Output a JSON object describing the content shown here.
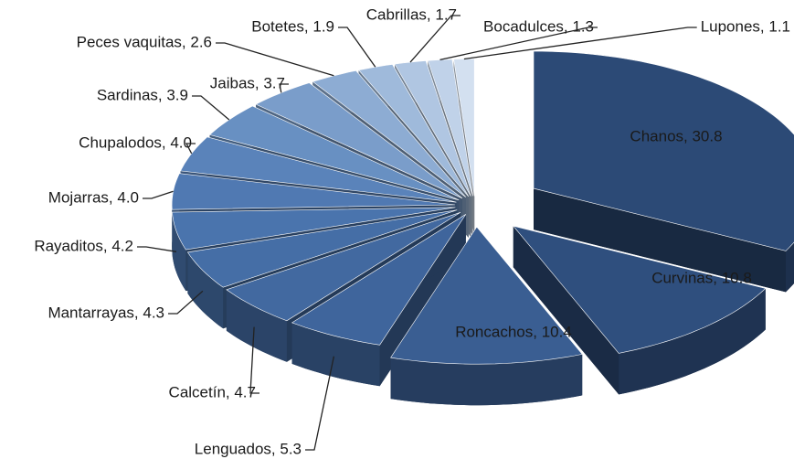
{
  "chart_data": {
    "type": "pie3d",
    "values": [
      30.8,
      10.8,
      10.4,
      5.3,
      4.7,
      4.3,
      4.2,
      4.0,
      4.0,
      3.9,
      3.7,
      2.6,
      1.9,
      1.7,
      1.3,
      1.1
    ],
    "value_labels": [
      "Chanos, 30.8",
      "Curvinas, 10.8",
      "Roncachos, 10.4",
      "Lenguados, 5.3",
      "Calcetín, 4.7",
      "Mantarrayas, 4.3",
      "Rayaditos, 4.2",
      "Mojarras, 4.0",
      "Chupalodos, 4.0",
      "Sardinas, 3.9",
      "Jaibas, 3.7",
      "Peces vaquitas, 2.6",
      "Botetes, 1.9",
      "Cabrillas, 1.7",
      "Bocadulces, 1.3",
      "Lupones, 1.1"
    ],
    "colors": [
      "#2c4a76",
      "#2f4f7e",
      "#3a5e92",
      "#3f659c",
      "#4269a0",
      "#456ea6",
      "#4a74ad",
      "#5079b2",
      "#5a83ba",
      "#6890c2",
      "#7a9dca",
      "#8dacd3",
      "#9fbadb",
      "#b0c6e2",
      "#c0d2e9",
      "#d3e0f0"
    ]
  }
}
